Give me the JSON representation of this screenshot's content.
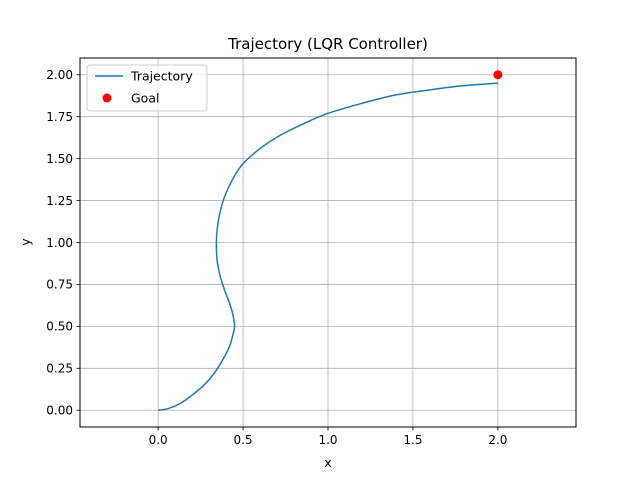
{
  "chart_data": {
    "type": "line",
    "title": "Trajectory (LQR Controller)",
    "xlabel": "x",
    "ylabel": "y",
    "xlim": [
      -0.46,
      2.46
    ],
    "ylim": [
      -0.1,
      2.1
    ],
    "xticks": [
      {
        "value": 0.0,
        "label": "0.0"
      },
      {
        "value": 0.5,
        "label": "0.5"
      },
      {
        "value": 1.0,
        "label": "1.0"
      },
      {
        "value": 1.5,
        "label": "1.5"
      },
      {
        "value": 2.0,
        "label": "2.0"
      }
    ],
    "yticks": [
      {
        "value": 0.0,
        "label": "0.00"
      },
      {
        "value": 0.25,
        "label": "0.25"
      },
      {
        "value": 0.5,
        "label": "0.50"
      },
      {
        "value": 0.75,
        "label": "0.75"
      },
      {
        "value": 1.0,
        "label": "1.00"
      },
      {
        "value": 1.25,
        "label": "1.25"
      },
      {
        "value": 1.5,
        "label": "1.50"
      },
      {
        "value": 1.75,
        "label": "1.75"
      },
      {
        "value": 2.0,
        "label": "2.00"
      }
    ],
    "grid": true,
    "legend_position": "top-left",
    "series": [
      {
        "name": "Trajectory",
        "kind": "line",
        "color": "#1f77b4",
        "points": [
          [
            0.0,
            0.0
          ],
          [
            0.06,
            0.01
          ],
          [
            0.13,
            0.04
          ],
          [
            0.2,
            0.09
          ],
          [
            0.27,
            0.15
          ],
          [
            0.33,
            0.22
          ],
          [
            0.38,
            0.3
          ],
          [
            0.42,
            0.38
          ],
          [
            0.44,
            0.45
          ],
          [
            0.45,
            0.5
          ],
          [
            0.44,
            0.57
          ],
          [
            0.42,
            0.64
          ],
          [
            0.39,
            0.72
          ],
          [
            0.36,
            0.82
          ],
          [
            0.345,
            0.92
          ],
          [
            0.345,
            1.05
          ],
          [
            0.36,
            1.16
          ],
          [
            0.39,
            1.27
          ],
          [
            0.44,
            1.38
          ],
          [
            0.5,
            1.47
          ],
          [
            0.6,
            1.56
          ],
          [
            0.72,
            1.64
          ],
          [
            0.86,
            1.71
          ],
          [
            1.0,
            1.77
          ],
          [
            1.2,
            1.83
          ],
          [
            1.4,
            1.88
          ],
          [
            1.6,
            1.91
          ],
          [
            1.8,
            1.935
          ],
          [
            2.0,
            1.95
          ]
        ]
      },
      {
        "name": "Goal",
        "kind": "marker",
        "color": "#ff0000",
        "points": [
          [
            2.0,
            2.0
          ]
        ]
      }
    ]
  }
}
